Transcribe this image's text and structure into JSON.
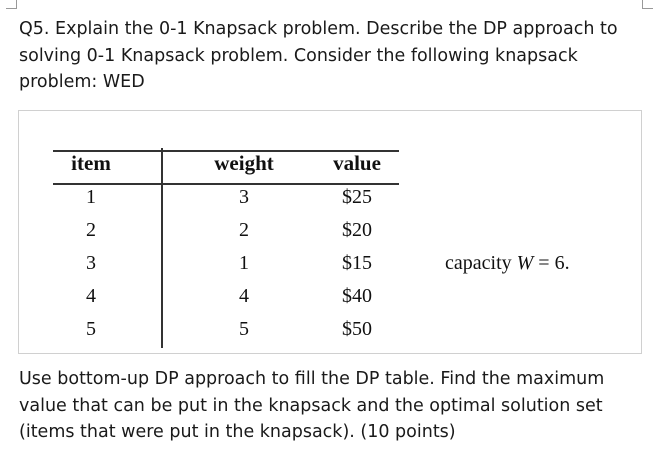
{
  "question": "Q5. Explain the 0-1 Knapsack problem. Describe the DP approach to solving 0-1 Knapsack problem. Consider the following knapsack problem: WED",
  "table": {
    "headers": [
      "item",
      "weight",
      "value"
    ],
    "rows": [
      [
        "1",
        "3",
        "$25"
      ],
      [
        "2",
        "2",
        "$20"
      ],
      [
        "3",
        "1",
        "$15"
      ],
      [
        "4",
        "4",
        "$40"
      ],
      [
        "5",
        "5",
        "$50"
      ]
    ]
  },
  "capacity": {
    "label": "capacity ",
    "var": "W",
    "eq": " = 6."
  },
  "instructions": "Use bottom-up DP approach to fill the DP table. Find the maximum value that can be put in the knapsack and the optimal solution set (items that were put in the knapsack). (10 points)"
}
